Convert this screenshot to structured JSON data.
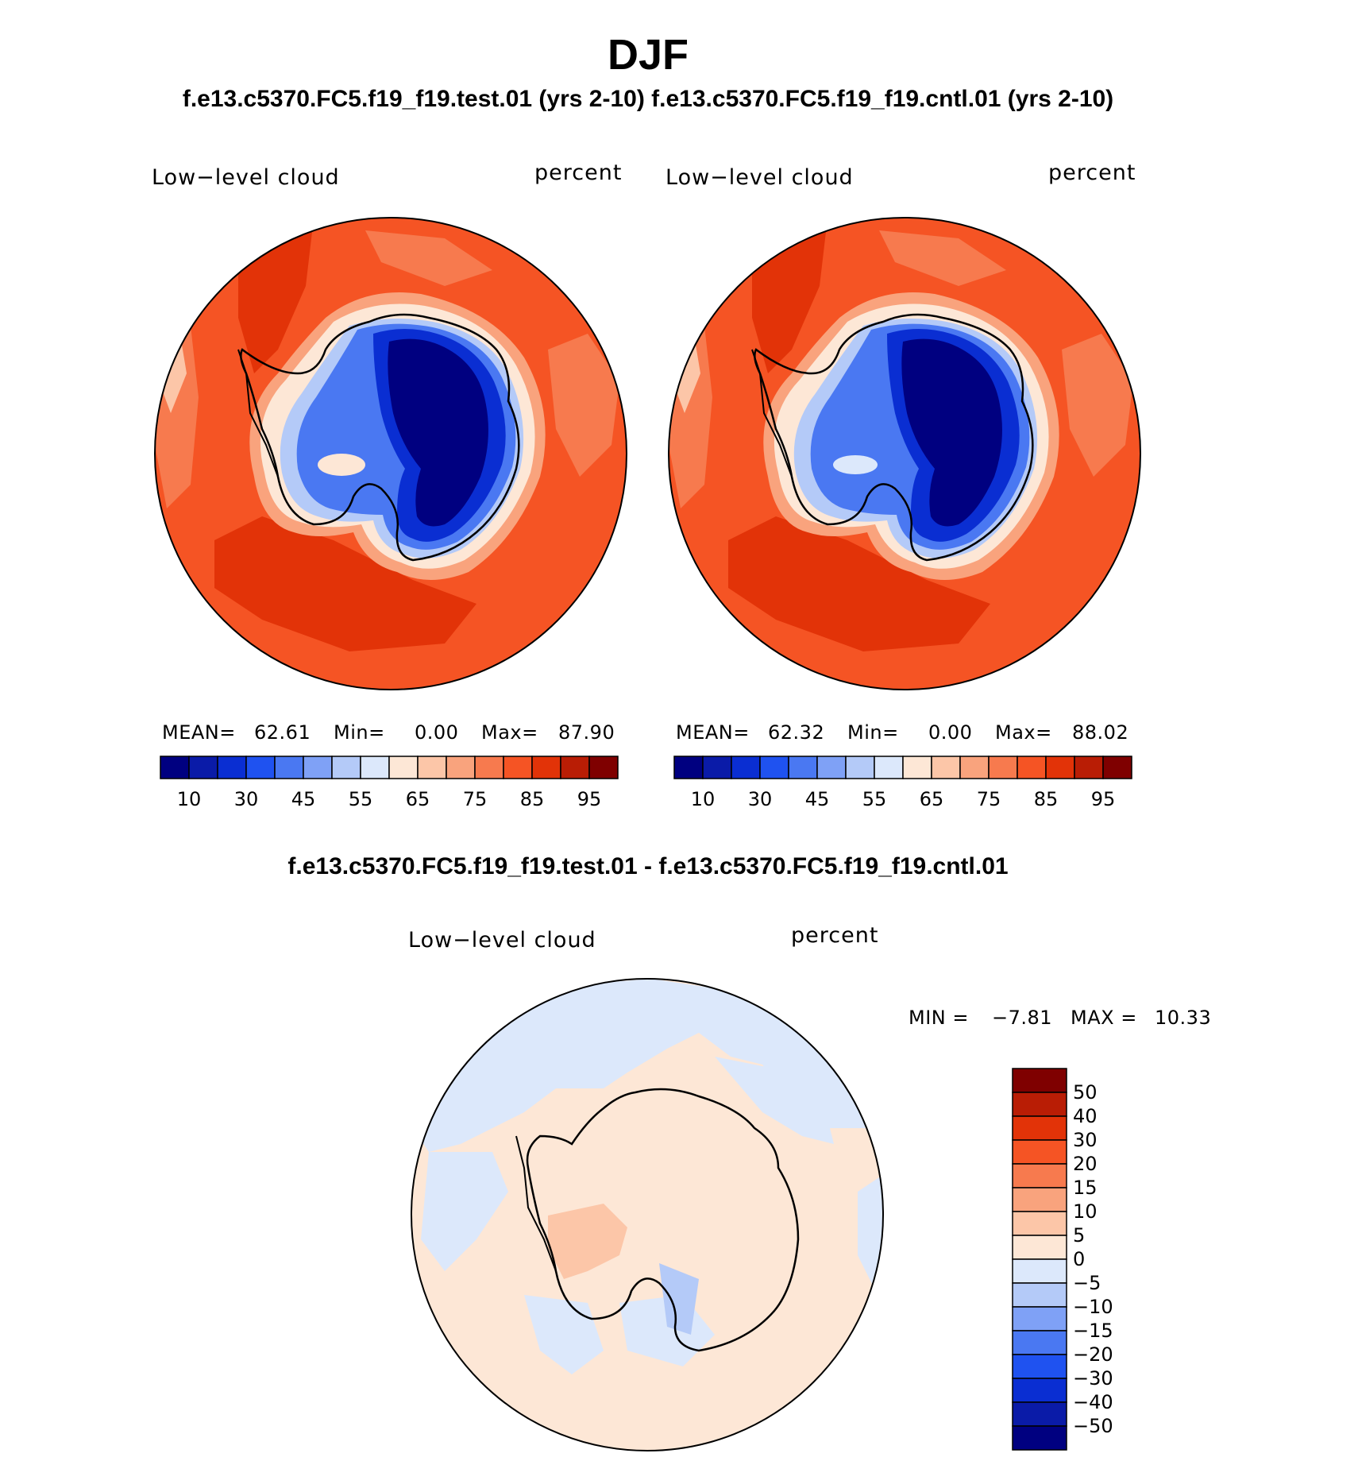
{
  "title": "DJF",
  "pair_title": "f.e13.c5370.FC5.f19_f19.test.01 (yrs 2-10) f.e13.c5370.FC5.f19_f19.cntl.01 (yrs 2-10)",
  "diff_title": "f.e13.c5370.FC5.f19_f19.test.01 - f.e13.c5370.FC5.f19_f19.cntl.01",
  "panels": [
    {
      "variable": "Low−level cloud",
      "units": "percent",
      "stats": {
        "mean_label": "MEAN=",
        "mean": "62.61",
        "min_label": "Min=",
        "min": "0.00",
        "max_label": "Max=",
        "max": "87.90"
      }
    },
    {
      "variable": "Low−level cloud",
      "units": "percent",
      "stats": {
        "mean_label": "MEAN=",
        "mean": "62.32",
        "min_label": "Min=",
        "min": "0.00",
        "max_label": "Max=",
        "max": "88.02"
      }
    }
  ],
  "colorbar": {
    "colors": [
      "#000080",
      "#0a1ba8",
      "#0a2ed2",
      "#1f52f0",
      "#4a78f2",
      "#7fa1f6",
      "#b4caf8",
      "#dce8fb",
      "#fde7d6",
      "#fcc6a8",
      "#f9a37d",
      "#f77a4e",
      "#f55424",
      "#e23308",
      "#b91d05",
      "#7f0000"
    ],
    "tick_labels": [
      "10",
      "30",
      "45",
      "55",
      "65",
      "75",
      "85",
      "95"
    ]
  },
  "diff_panel": {
    "variable": "Low−level cloud",
    "units": "percent",
    "stats": {
      "min_label": "MIN =",
      "min": "−7.81",
      "max_label": "MAX =",
      "max": "10.33"
    },
    "colorbar": {
      "colors_top_to_bottom": [
        "#7f0000",
        "#b91d05",
        "#e23308",
        "#f55424",
        "#f77a4e",
        "#f9a37d",
        "#fcc6a8",
        "#fde7d6",
        "#dce8fb",
        "#b4caf8",
        "#7fa1f6",
        "#4a78f2",
        "#1f52f0",
        "#0a2ed2",
        "#0a1ba8",
        "#000080"
      ],
      "tick_labels": [
        "50",
        "40",
        "30",
        "20",
        "15",
        "10",
        "5",
        "0",
        "−5",
        "−10",
        "−15",
        "−20",
        "−30",
        "−40",
        "−50"
      ]
    }
  }
}
